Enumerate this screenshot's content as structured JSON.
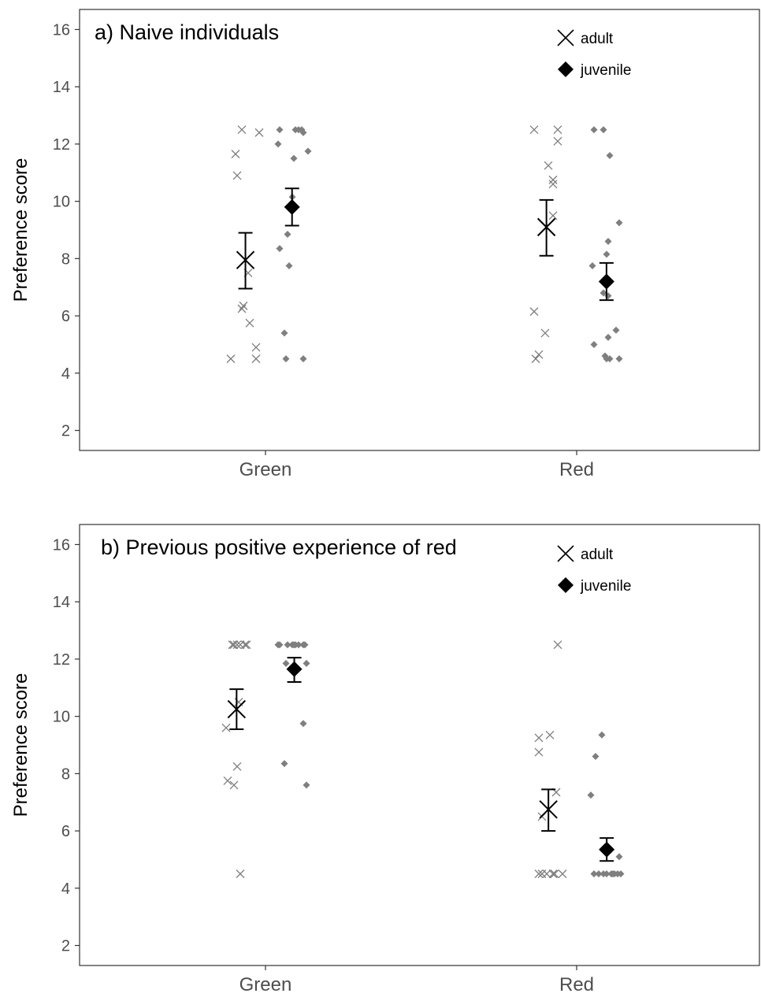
{
  "chart_data": [
    {
      "type": "scatter",
      "panel_title": "a) Naive individuals",
      "ylabel": "Preference score",
      "xlabel": "",
      "categories": [
        "Green",
        "Red"
      ],
      "ylim": [
        1.3,
        16.7
      ],
      "yticks": [
        2,
        4,
        6,
        8,
        10,
        12,
        14,
        16
      ],
      "grid": false,
      "legend": {
        "position": "top-right",
        "entries": [
          "adult",
          "juvenile"
        ]
      },
      "series": [
        {
          "name": "adult",
          "marker": "cross",
          "color_points": "#7f7f7f",
          "color_summary": "#000000",
          "groups": [
            {
              "category": "Green",
              "points": [
                {
                  "x": -0.22,
                  "y": 4.5
                },
                {
                  "x": -0.19,
                  "y": 11.65
                },
                {
                  "x": -0.18,
                  "y": 10.9
                },
                {
                  "x": -0.15,
                  "y": 12.5
                },
                {
                  "x": -0.15,
                  "y": 6.25
                },
                {
                  "x": -0.14,
                  "y": 6.35
                },
                {
                  "x": -0.11,
                  "y": 7.5
                },
                {
                  "x": -0.1,
                  "y": 5.75
                },
                {
                  "x": -0.06,
                  "y": 4.9
                },
                {
                  "x": -0.06,
                  "y": 4.5
                },
                {
                  "x": -0.04,
                  "y": 12.4
                }
              ],
              "mean": 7.95,
              "lower": 6.95,
              "upper": 8.9
            },
            {
              "category": "Red",
              "points": [
                {
                  "x": -0.27,
                  "y": 12.5
                },
                {
                  "x": -0.27,
                  "y": 6.15
                },
                {
                  "x": -0.26,
                  "y": 4.5
                },
                {
                  "x": -0.24,
                  "y": 4.65
                },
                {
                  "x": -0.2,
                  "y": 5.4
                },
                {
                  "x": -0.18,
                  "y": 11.25
                },
                {
                  "x": -0.15,
                  "y": 10.75
                },
                {
                  "x": -0.15,
                  "y": 10.6
                },
                {
                  "x": -0.15,
                  "y": 9.5
                },
                {
                  "x": -0.12,
                  "y": 12.5
                },
                {
                  "x": -0.12,
                  "y": 12.1
                }
              ],
              "mean": 9.1,
              "lower": 8.1,
              "upper": 10.05
            }
          ]
        },
        {
          "name": "juvenile",
          "marker": "diamond",
          "color_points": "#7f7f7f",
          "color_summary": "#000000",
          "groups": [
            {
              "category": "Green",
              "points": [
                {
                  "x": 0.08,
                  "y": 12.0
                },
                {
                  "x": 0.09,
                  "y": 12.5
                },
                {
                  "x": 0.09,
                  "y": 8.35
                },
                {
                  "x": 0.12,
                  "y": 5.4
                },
                {
                  "x": 0.13,
                  "y": 4.5
                },
                {
                  "x": 0.14,
                  "y": 8.85
                },
                {
                  "x": 0.15,
                  "y": 7.75
                },
                {
                  "x": 0.17,
                  "y": 10.15
                },
                {
                  "x": 0.18,
                  "y": 11.5
                },
                {
                  "x": 0.19,
                  "y": 12.5
                },
                {
                  "x": 0.21,
                  "y": 12.5
                },
                {
                  "x": 0.23,
                  "y": 12.5
                },
                {
                  "x": 0.24,
                  "y": 12.4
                },
                {
                  "x": 0.24,
                  "y": 4.5
                },
                {
                  "x": 0.27,
                  "y": 11.75
                }
              ],
              "mean": 9.8,
              "lower": 9.15,
              "upper": 10.45
            },
            {
              "category": "Red",
              "points": [
                {
                  "x": 0.1,
                  "y": 7.75
                },
                {
                  "x": 0.11,
                  "y": 5.0
                },
                {
                  "x": 0.11,
                  "y": 12.5
                },
                {
                  "x": 0.17,
                  "y": 12.5
                },
                {
                  "x": 0.17,
                  "y": 6.8
                },
                {
                  "x": 0.18,
                  "y": 4.6
                },
                {
                  "x": 0.19,
                  "y": 4.5
                },
                {
                  "x": 0.19,
                  "y": 8.15
                },
                {
                  "x": 0.2,
                  "y": 8.6
                },
                {
                  "x": 0.2,
                  "y": 5.25
                },
                {
                  "x": 0.2,
                  "y": 6.7
                },
                {
                  "x": 0.21,
                  "y": 11.6
                },
                {
                  "x": 0.21,
                  "y": 4.5
                },
                {
                  "x": 0.25,
                  "y": 5.5
                },
                {
                  "x": 0.27,
                  "y": 9.25
                },
                {
                  "x": 0.27,
                  "y": 4.5
                }
              ],
              "mean": 7.2,
              "lower": 6.55,
              "upper": 7.85
            }
          ]
        }
      ]
    },
    {
      "type": "scatter",
      "panel_title": "b) Previous positive experience of red",
      "ylabel": "Preference score",
      "xlabel": "",
      "categories": [
        "Green",
        "Red"
      ],
      "ylim": [
        1.3,
        16.7
      ],
      "yticks": [
        2,
        4,
        6,
        8,
        10,
        12,
        14,
        16
      ],
      "grid": false,
      "legend": {
        "position": "top-right",
        "entries": [
          "adult",
          "juvenile"
        ]
      },
      "series": [
        {
          "name": "adult",
          "marker": "cross",
          "color_points": "#7f7f7f",
          "color_summary": "#000000",
          "groups": [
            {
              "category": "Green",
              "points": [
                {
                  "x": -0.25,
                  "y": 9.6
                },
                {
                  "x": -0.24,
                  "y": 7.75
                },
                {
                  "x": -0.21,
                  "y": 12.5
                },
                {
                  "x": -0.2,
                  "y": 12.5
                },
                {
                  "x": -0.2,
                  "y": 7.6
                },
                {
                  "x": -0.18,
                  "y": 12.5
                },
                {
                  "x": -0.18,
                  "y": 8.25
                },
                {
                  "x": -0.17,
                  "y": 10.5
                },
                {
                  "x": -0.16,
                  "y": 12.5
                },
                {
                  "x": -0.16,
                  "y": 4.5
                },
                {
                  "x": -0.13,
                  "y": 12.5
                },
                {
                  "x": -0.12,
                  "y": 12.5
                }
              ],
              "mean": 10.25,
              "lower": 9.55,
              "upper": 10.95
            },
            {
              "category": "Red",
              "points": [
                {
                  "x": -0.24,
                  "y": 9.25
                },
                {
                  "x": -0.24,
                  "y": 8.75
                },
                {
                  "x": -0.24,
                  "y": 4.5
                },
                {
                  "x": -0.22,
                  "y": 6.5
                },
                {
                  "x": -0.22,
                  "y": 4.5
                },
                {
                  "x": -0.19,
                  "y": 4.5
                },
                {
                  "x": -0.17,
                  "y": 9.35
                },
                {
                  "x": -0.15,
                  "y": 4.5
                },
                {
                  "x": -0.14,
                  "y": 4.5
                },
                {
                  "x": -0.13,
                  "y": 7.35
                },
                {
                  "x": -0.12,
                  "y": 12.5
                },
                {
                  "x": -0.09,
                  "y": 4.5
                }
              ],
              "mean": 6.75,
              "lower": 6.0,
              "upper": 7.45
            }
          ]
        },
        {
          "name": "juvenile",
          "marker": "diamond",
          "color_points": "#7f7f7f",
          "color_summary": "#000000",
          "groups": [
            {
              "category": "Green",
              "points": [
                {
                  "x": 0.08,
                  "y": 12.5
                },
                {
                  "x": 0.09,
                  "y": 12.5
                },
                {
                  "x": 0.12,
                  "y": 8.35
                },
                {
                  "x": 0.13,
                  "y": 11.85
                },
                {
                  "x": 0.14,
                  "y": 12.5
                },
                {
                  "x": 0.17,
                  "y": 12.5
                },
                {
                  "x": 0.18,
                  "y": 12.5
                },
                {
                  "x": 0.19,
                  "y": 12.5
                },
                {
                  "x": 0.21,
                  "y": 12.5
                },
                {
                  "x": 0.24,
                  "y": 12.5
                },
                {
                  "x": 0.25,
                  "y": 12.5
                },
                {
                  "x": 0.24,
                  "y": 9.75
                },
                {
                  "x": 0.26,
                  "y": 11.85
                },
                {
                  "x": 0.26,
                  "y": 7.6
                }
              ],
              "mean": 11.65,
              "lower": 11.2,
              "upper": 12.05
            },
            {
              "category": "Red",
              "points": [
                {
                  "x": 0.09,
                  "y": 7.25
                },
                {
                  "x": 0.11,
                  "y": 4.5
                },
                {
                  "x": 0.12,
                  "y": 8.6
                },
                {
                  "x": 0.14,
                  "y": 4.5
                },
                {
                  "x": 0.16,
                  "y": 9.35
                },
                {
                  "x": 0.17,
                  "y": 4.5
                },
                {
                  "x": 0.19,
                  "y": 4.5
                },
                {
                  "x": 0.22,
                  "y": 4.5
                },
                {
                  "x": 0.23,
                  "y": 4.5
                },
                {
                  "x": 0.24,
                  "y": 4.5
                },
                {
                  "x": 0.26,
                  "y": 4.5
                },
                {
                  "x": 0.27,
                  "y": 5.1
                },
                {
                  "x": 0.28,
                  "y": 4.5
                }
              ],
              "mean": 5.35,
              "lower": 4.95,
              "upper": 5.75
            }
          ]
        }
      ]
    }
  ]
}
